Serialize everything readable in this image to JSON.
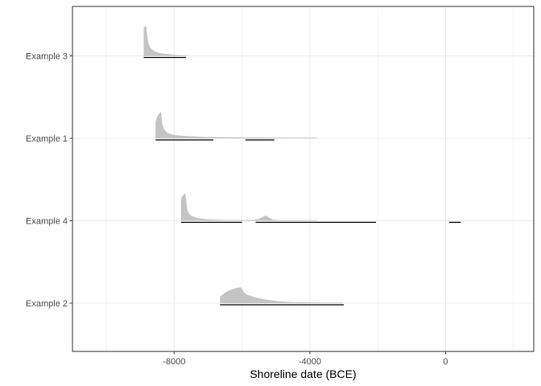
{
  "chart_data": {
    "type": "area",
    "title": "",
    "xlabel": "Shoreline date (BCE)",
    "ylabel": "",
    "xlim": [
      -11000,
      2600
    ],
    "x_ticks": [
      -8000,
      -4000,
      0
    ],
    "x_tick_labels": [
      "-8000",
      "-4000",
      "0"
    ],
    "grid": true,
    "legend": "none",
    "categories": [
      "Example 2",
      "Example 4",
      "Example 1",
      "Example 3"
    ],
    "series": [
      {
        "name": "Example 3",
        "density": {
          "x": [
            -8900,
            -8880,
            -8860,
            -8840,
            -8820,
            -8800,
            -8760,
            -8700,
            -8600,
            -8450,
            -8200,
            -7900,
            -7600
          ],
          "y": [
            0.9,
            0.94,
            0.97,
            1.0,
            0.94,
            0.68,
            0.4,
            0.26,
            0.16,
            0.1,
            0.06,
            0.03,
            0.01
          ]
        },
        "hdr_intervals": [
          [
            -8900,
            -7650
          ]
        ]
      },
      {
        "name": "Example 1",
        "density": {
          "x": [
            -8550,
            -8500,
            -8450,
            -8400,
            -8380,
            -8350,
            -8300,
            -8200,
            -8050,
            -7850,
            -7600,
            -7200,
            -6800,
            -6400,
            -6000,
            -5600,
            -5200,
            -4800,
            -4300,
            -3800
          ],
          "y": [
            0.55,
            0.7,
            0.8,
            0.86,
            0.8,
            0.45,
            0.3,
            0.18,
            0.12,
            0.09,
            0.07,
            0.05,
            0.04,
            0.035,
            0.03,
            0.03,
            0.025,
            0.02,
            0.012,
            0.005
          ]
        },
        "hdr_intervals": [
          [
            -8550,
            -6850
          ],
          [
            -5900,
            -5050
          ]
        ]
      },
      {
        "name": "Example 4",
        "density": {
          "x": [
            -7800,
            -7760,
            -7720,
            -7680,
            -7650,
            -7620,
            -7580,
            -7500,
            -7350,
            -7150,
            -6900,
            -6600,
            -6300,
            -6000,
            -5700,
            -5500,
            -5400,
            -5300,
            -5200,
            -5100,
            -4900,
            -4600,
            -4200,
            -3800
          ],
          "y": [
            0.72,
            0.8,
            0.86,
            0.89,
            0.75,
            0.4,
            0.26,
            0.16,
            0.1,
            0.06,
            0.04,
            0.03,
            0.025,
            0.02,
            0.02,
            0.06,
            0.12,
            0.17,
            0.1,
            0.04,
            0.02,
            0.012,
            0.006,
            0.002
          ]
        },
        "hdr_intervals": [
          [
            -7800,
            -6000
          ],
          [
            -5600,
            -2050
          ],
          [
            100,
            450
          ]
        ]
      },
      {
        "name": "Example 2",
        "density": {
          "x": [
            -6650,
            -6550,
            -6450,
            -6300,
            -6200,
            -6100,
            -6050,
            -6000,
            -5950,
            -5850,
            -5700,
            -5500,
            -5200,
            -4900,
            -4500,
            -4000,
            -3500,
            -3050
          ],
          "y": [
            0.22,
            0.3,
            0.38,
            0.45,
            0.49,
            0.51,
            0.52,
            0.47,
            0.36,
            0.28,
            0.22,
            0.16,
            0.1,
            0.06,
            0.035,
            0.02,
            0.01,
            0.005
          ]
        },
        "hdr_intervals": [
          [
            -6650,
            -3000
          ]
        ]
      }
    ],
    "colors": {
      "density_fill": "#c4c4c4",
      "interval_line": "#000000",
      "grid": "#ebebeb",
      "panel_border": "#333333",
      "tick_text": "#4d4d4d"
    }
  }
}
